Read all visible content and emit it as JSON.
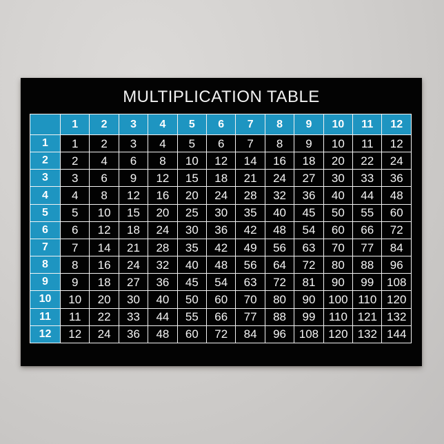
{
  "poster": {
    "title": "MULTIPLICATION TABLE",
    "bg_color": "#030303",
    "title_color": "#f2f2f2"
  },
  "colors": {
    "accent_blue": "#1e95c1",
    "grid_border": "#f4f4f4",
    "cell_bg": "#020202",
    "cell_text": "#f5f5f5",
    "wall_gray": "#d2d0ce"
  },
  "chart_data": {
    "type": "table",
    "title": "MULTIPLICATION TABLE",
    "col_headers": [
      "1",
      "2",
      "3",
      "4",
      "5",
      "6",
      "7",
      "8",
      "9",
      "10",
      "11",
      "12"
    ],
    "row_headers": [
      "1",
      "2",
      "3",
      "4",
      "5",
      "6",
      "7",
      "8",
      "9",
      "10",
      "11",
      "12"
    ],
    "values": [
      [
        1,
        2,
        3,
        4,
        5,
        6,
        7,
        8,
        9,
        10,
        11,
        12
      ],
      [
        2,
        4,
        6,
        8,
        10,
        12,
        14,
        16,
        18,
        20,
        22,
        24
      ],
      [
        3,
        6,
        9,
        12,
        15,
        18,
        21,
        24,
        27,
        30,
        33,
        36
      ],
      [
        4,
        8,
        12,
        16,
        20,
        24,
        28,
        32,
        36,
        40,
        44,
        48
      ],
      [
        5,
        10,
        15,
        20,
        25,
        30,
        35,
        40,
        45,
        50,
        55,
        60
      ],
      [
        6,
        12,
        18,
        24,
        30,
        36,
        42,
        48,
        54,
        60,
        66,
        72
      ],
      [
        7,
        14,
        21,
        28,
        35,
        42,
        49,
        56,
        63,
        70,
        77,
        84
      ],
      [
        8,
        16,
        24,
        32,
        40,
        48,
        56,
        64,
        72,
        80,
        88,
        96
      ],
      [
        9,
        18,
        27,
        36,
        45,
        54,
        63,
        72,
        81,
        90,
        99,
        108
      ],
      [
        10,
        20,
        30,
        40,
        50,
        60,
        70,
        80,
        90,
        100,
        110,
        120
      ],
      [
        11,
        22,
        33,
        44,
        55,
        66,
        77,
        88,
        99,
        110,
        121,
        132
      ],
      [
        12,
        24,
        36,
        48,
        60,
        72,
        84,
        96,
        108,
        120,
        132,
        144
      ]
    ]
  }
}
